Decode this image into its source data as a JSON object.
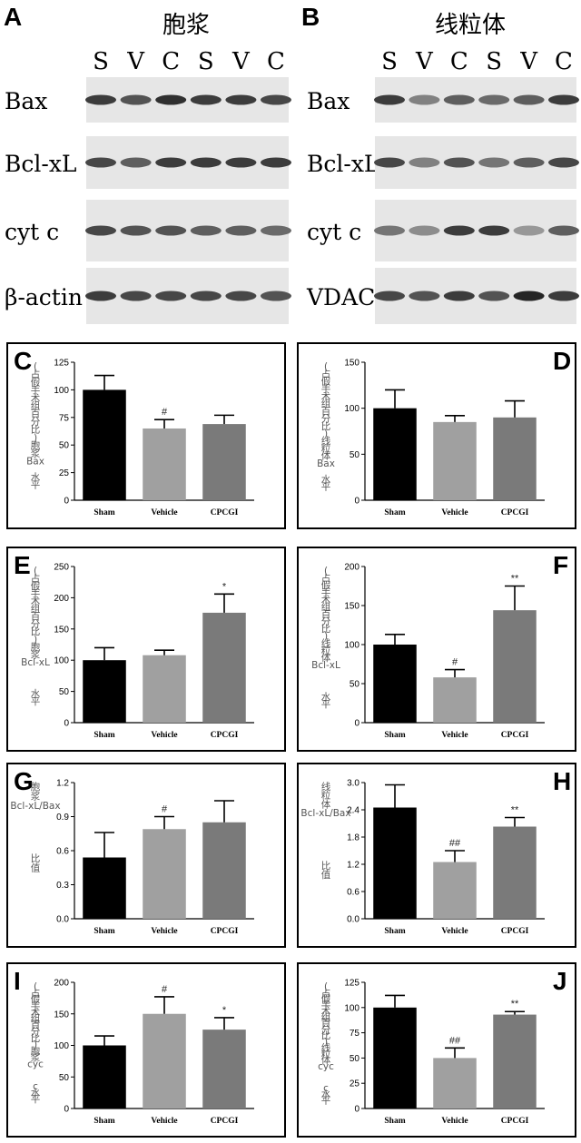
{
  "blots": [
    {
      "letter": "A",
      "title": "胞浆",
      "lanes": [
        "S",
        "V",
        "C",
        "S",
        "V",
        "C"
      ],
      "rows": [
        {
          "label": "Bax",
          "intensity": [
            0.85,
            0.75,
            0.9,
            0.85,
            0.85,
            0.8
          ]
        },
        {
          "label": "Bcl-xL",
          "intensity": [
            0.8,
            0.7,
            0.85,
            0.85,
            0.85,
            0.85
          ]
        },
        {
          "label": "cyt c",
          "intensity": [
            0.8,
            0.75,
            0.75,
            0.7,
            0.7,
            0.65
          ]
        },
        {
          "label": "β-actin",
          "intensity": [
            0.85,
            0.8,
            0.8,
            0.8,
            0.8,
            0.75
          ]
        }
      ]
    },
    {
      "letter": "B",
      "title": "线粒体",
      "lanes": [
        "S",
        "V",
        "C",
        "S",
        "V",
        "C"
      ],
      "rows": [
        {
          "label": "Bax",
          "intensity": [
            0.85,
            0.55,
            0.7,
            0.65,
            0.7,
            0.85
          ]
        },
        {
          "label": "Bcl-xL",
          "intensity": [
            0.8,
            0.55,
            0.75,
            0.6,
            0.7,
            0.8
          ]
        },
        {
          "label": "cyt c",
          "intensity": [
            0.6,
            0.5,
            0.85,
            0.85,
            0.45,
            0.7
          ]
        },
        {
          "label": "VDAC",
          "intensity": [
            0.8,
            0.75,
            0.85,
            0.75,
            0.95,
            0.85
          ]
        }
      ]
    }
  ],
  "chart_data": [
    {
      "letter": "C",
      "type": "bar",
      "categories": [
        "Sham",
        "Vehicle",
        "CPCGI"
      ],
      "values": [
        100,
        65,
        69
      ],
      "errors": [
        13,
        8,
        8
      ],
      "annotations": [
        "",
        "#",
        ""
      ],
      "ylabel": "(占假手术组百分比)胞浆Bax水平",
      "ylim": [
        0,
        125
      ],
      "yticks": [
        0,
        25,
        50,
        75,
        100,
        125
      ]
    },
    {
      "letter": "D",
      "type": "bar",
      "categories": [
        "Sham",
        "Vehicle",
        "CPCGI"
      ],
      "values": [
        100,
        85,
        90
      ],
      "errors": [
        20,
        7,
        18
      ],
      "annotations": [
        "",
        "",
        ""
      ],
      "ylabel": "(占假手术组百分比)线粒体Bax水平",
      "ylim": [
        0,
        150
      ],
      "yticks": [
        0,
        50,
        100,
        150
      ]
    },
    {
      "letter": "E",
      "type": "bar",
      "categories": [
        "Sham",
        "Vehicle",
        "CPCGI"
      ],
      "values": [
        100,
        108,
        176
      ],
      "errors": [
        20,
        8,
        30
      ],
      "annotations": [
        "",
        "",
        "*"
      ],
      "ylabel": "(占假手术组百分比)胞浆Bcl-xL水平",
      "ylim": [
        0,
        250
      ],
      "yticks": [
        0,
        50,
        100,
        150,
        200,
        250
      ]
    },
    {
      "letter": "F",
      "type": "bar",
      "categories": [
        "Sham",
        "Vehicle",
        "CPCGI"
      ],
      "values": [
        100,
        58,
        144
      ],
      "errors": [
        13,
        10,
        31
      ],
      "annotations": [
        "",
        "#",
        "**"
      ],
      "ylabel": "(占假手术组百分比)线粒体Bcl-xL水平",
      "ylim": [
        0,
        200
      ],
      "yticks": [
        0,
        50,
        100,
        150,
        200
      ]
    },
    {
      "letter": "G",
      "type": "bar",
      "categories": [
        "Sham",
        "Vehicle",
        "CPCGI"
      ],
      "values": [
        0.54,
        0.79,
        0.85
      ],
      "errors": [
        0.22,
        0.11,
        0.19
      ],
      "annotations": [
        "",
        "#",
        ""
      ],
      "ylabel": "胞浆Bcl-xL/Bax比值",
      "ylim": [
        0,
        1.2
      ],
      "yticks": [
        0.0,
        0.3,
        0.6,
        0.9,
        1.2
      ],
      "decimals": 1
    },
    {
      "letter": "H",
      "type": "bar",
      "categories": [
        "Sham",
        "Vehicle",
        "CPCGI"
      ],
      "values": [
        2.45,
        1.25,
        2.03
      ],
      "errors": [
        0.5,
        0.25,
        0.2
      ],
      "annotations": [
        "",
        "##",
        "**"
      ],
      "ylabel": "线粒体Bcl-xL/Bax比值",
      "ylim": [
        0,
        3.0
      ],
      "yticks": [
        0.0,
        0.6,
        1.2,
        1.8,
        2.4,
        3.0
      ],
      "decimals": 1
    },
    {
      "letter": "I",
      "type": "bar",
      "categories": [
        "Sham",
        "Vehicle",
        "CPCGI"
      ],
      "values": [
        100,
        150,
        125
      ],
      "errors": [
        15,
        27,
        19
      ],
      "annotations": [
        "",
        "#",
        "*"
      ],
      "ylabel": "(占假手术组百分比)胞浆cyc c水平",
      "ylim": [
        0,
        200
      ],
      "yticks": [
        0,
        50,
        100,
        150,
        200
      ]
    },
    {
      "letter": "J",
      "type": "bar",
      "categories": [
        "Sham",
        "Vehicle",
        "CPCGI"
      ],
      "values": [
        100,
        50,
        93
      ],
      "errors": [
        12,
        10,
        3
      ],
      "annotations": [
        "",
        "##",
        "**"
      ],
      "ylabel": "(占假手术组百分比)线粒体cyc c水平",
      "ylim": [
        0,
        125
      ],
      "yticks": [
        0,
        25,
        50,
        75,
        100,
        125
      ]
    }
  ],
  "colors": {
    "bars": [
      "#000000",
      "#a0a0a0",
      "#7a7a7a"
    ],
    "axis": "#000000",
    "frame": "#000000"
  }
}
